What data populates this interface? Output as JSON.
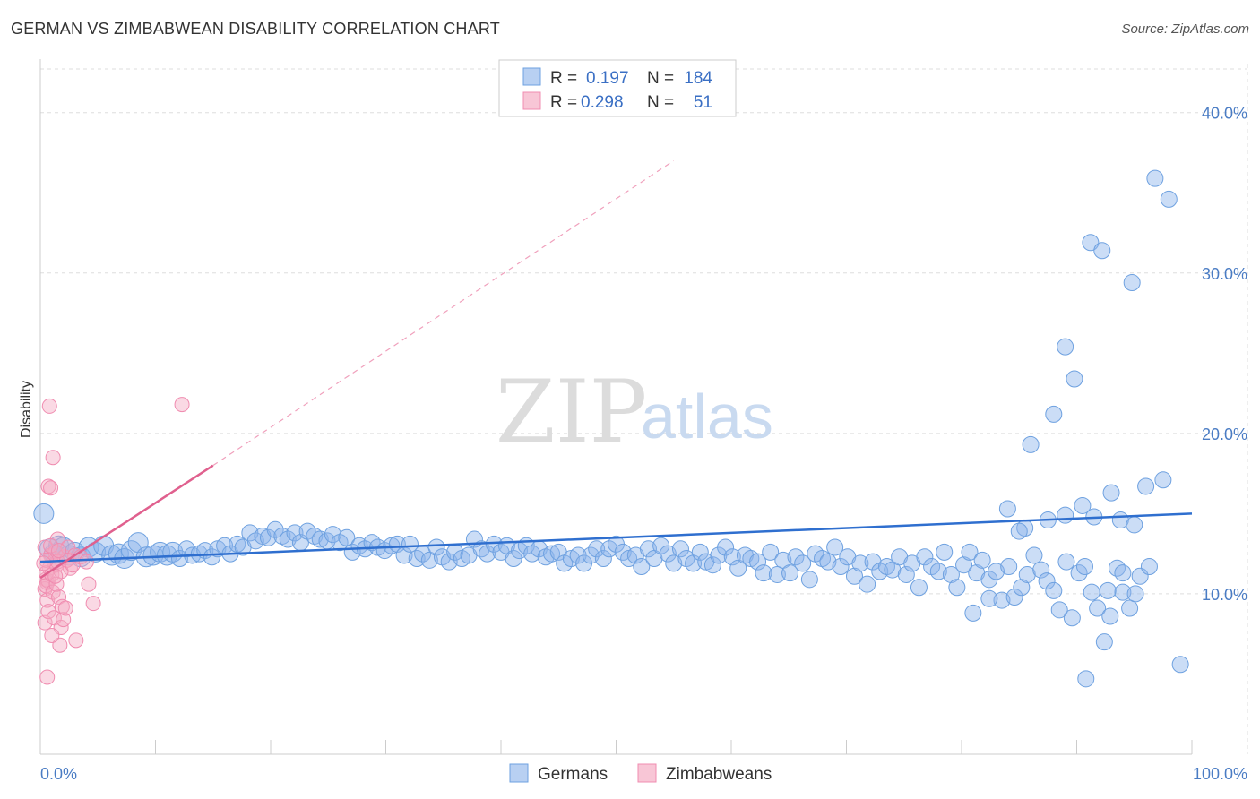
{
  "title": "GERMAN VS ZIMBABWEAN DISABILITY CORRELATION CHART",
  "source": "Source: ZipAtlas.com",
  "watermark": {
    "zip": "ZIP",
    "atlas": "atlas"
  },
  "colors": {
    "german": "#6ea1e0",
    "german_line": "#2f6fcf",
    "zimbabwean": "#f08cb0",
    "zimbabwean_line": "#e0608e",
    "tick": "#4a7cc4",
    "grid": "#dddddd"
  },
  "legend": {
    "rows": [
      {
        "r_label": "R =",
        "r_value": "0.197",
        "n_label": "N =",
        "n_value": "184"
      },
      {
        "r_label": "R =",
        "r_value": "0.298",
        "n_label": "N =",
        "n_value": "51"
      }
    ]
  },
  "bottom_legend": [
    "Germans",
    "Zimbabweans"
  ],
  "chart_data": {
    "type": "scatter",
    "xlabel": "",
    "ylabel": "Disability",
    "xlim": [
      0,
      100
    ],
    "ylim": [
      0,
      43
    ],
    "x_tick_labels": [
      "0.0%",
      "100.0%"
    ],
    "y_ticks": [
      10,
      20,
      30,
      40
    ],
    "y_tick_labels": [
      "10.0%",
      "20.0%",
      "30.0%",
      "40.0%"
    ],
    "grid": true,
    "legend_position": "top-center",
    "series": [
      {
        "name": "Germans",
        "trend": {
          "x": [
            0,
            100
          ],
          "y": [
            12.0,
            15.0
          ]
        },
        "points": [
          [
            0.3,
            15.0
          ],
          [
            0.8,
            12.8
          ],
          [
            1.2,
            12.5
          ],
          [
            1.6,
            13.0
          ],
          [
            2.0,
            12.9
          ],
          [
            2.5,
            12.4
          ],
          [
            3.0,
            12.6
          ],
          [
            3.5,
            12.3
          ],
          [
            4.2,
            12.9
          ],
          [
            4.8,
            12.6
          ],
          [
            5.5,
            13.0
          ],
          [
            6.2,
            12.4
          ],
          [
            6.8,
            12.5
          ],
          [
            7.3,
            12.2
          ],
          [
            7.9,
            12.7
          ],
          [
            8.5,
            13.2
          ],
          [
            9.2,
            12.3
          ],
          [
            9.8,
            12.4
          ],
          [
            10.4,
            12.6
          ],
          [
            11.0,
            12.4
          ],
          [
            11.5,
            12.6
          ],
          [
            12.1,
            12.2
          ],
          [
            12.7,
            12.8
          ],
          [
            13.2,
            12.4
          ],
          [
            13.8,
            12.5
          ],
          [
            14.3,
            12.7
          ],
          [
            14.9,
            12.3
          ],
          [
            15.4,
            12.8
          ],
          [
            16.0,
            13.0
          ],
          [
            16.5,
            12.5
          ],
          [
            17.1,
            13.1
          ],
          [
            17.6,
            12.9
          ],
          [
            18.2,
            13.8
          ],
          [
            18.7,
            13.3
          ],
          [
            19.3,
            13.6
          ],
          [
            19.8,
            13.5
          ],
          [
            20.4,
            14.0
          ],
          [
            21.0,
            13.6
          ],
          [
            21.5,
            13.4
          ],
          [
            22.1,
            13.8
          ],
          [
            22.6,
            13.2
          ],
          [
            23.2,
            13.9
          ],
          [
            23.8,
            13.6
          ],
          [
            24.3,
            13.4
          ],
          [
            24.9,
            13.3
          ],
          [
            25.4,
            13.7
          ],
          [
            26.0,
            13.2
          ],
          [
            26.6,
            13.5
          ],
          [
            27.1,
            12.6
          ],
          [
            27.7,
            13.0
          ],
          [
            28.2,
            12.8
          ],
          [
            28.8,
            13.2
          ],
          [
            29.3,
            12.9
          ],
          [
            29.9,
            12.7
          ],
          [
            30.5,
            13.0
          ],
          [
            31.0,
            13.1
          ],
          [
            31.6,
            12.4
          ],
          [
            32.1,
            13.1
          ],
          [
            32.7,
            12.2
          ],
          [
            33.2,
            12.5
          ],
          [
            33.8,
            12.1
          ],
          [
            34.4,
            12.9
          ],
          [
            34.9,
            12.3
          ],
          [
            35.5,
            12.0
          ],
          [
            36.0,
            12.6
          ],
          [
            36.6,
            12.2
          ],
          [
            37.2,
            12.4
          ],
          [
            37.7,
            13.4
          ],
          [
            38.3,
            12.8
          ],
          [
            38.8,
            12.5
          ],
          [
            39.4,
            13.1
          ],
          [
            40.0,
            12.6
          ],
          [
            40.5,
            13.0
          ],
          [
            41.1,
            12.2
          ],
          [
            41.6,
            12.7
          ],
          [
            42.2,
            13.0
          ],
          [
            42.7,
            12.5
          ],
          [
            43.3,
            12.8
          ],
          [
            43.9,
            12.3
          ],
          [
            44.4,
            12.5
          ],
          [
            45.0,
            12.6
          ],
          [
            45.5,
            11.9
          ],
          [
            46.1,
            12.2
          ],
          [
            46.7,
            12.4
          ],
          [
            47.2,
            11.9
          ],
          [
            47.8,
            12.4
          ],
          [
            48.3,
            12.8
          ],
          [
            48.9,
            12.2
          ],
          [
            49.4,
            12.8
          ],
          [
            50.0,
            13.1
          ],
          [
            50.6,
            12.6
          ],
          [
            51.1,
            12.2
          ],
          [
            51.7,
            12.4
          ],
          [
            52.2,
            11.7
          ],
          [
            52.8,
            12.8
          ],
          [
            53.3,
            12.2
          ],
          [
            53.9,
            13.0
          ],
          [
            54.5,
            12.5
          ],
          [
            55.0,
            11.9
          ],
          [
            55.6,
            12.8
          ],
          [
            56.1,
            12.2
          ],
          [
            56.7,
            11.9
          ],
          [
            57.3,
            12.6
          ],
          [
            57.8,
            12.0
          ],
          [
            58.4,
            11.8
          ],
          [
            58.9,
            12.4
          ],
          [
            59.5,
            12.9
          ],
          [
            60.1,
            12.3
          ],
          [
            60.6,
            11.6
          ],
          [
            61.2,
            12.4
          ],
          [
            61.7,
            12.2
          ],
          [
            62.3,
            12.0
          ],
          [
            62.8,
            11.3
          ],
          [
            63.4,
            12.6
          ],
          [
            64.0,
            11.2
          ],
          [
            64.5,
            12.1
          ],
          [
            65.1,
            11.3
          ],
          [
            65.6,
            12.3
          ],
          [
            66.2,
            11.9
          ],
          [
            66.8,
            10.9
          ],
          [
            67.3,
            12.5
          ],
          [
            67.9,
            12.2
          ],
          [
            68.4,
            12.0
          ],
          [
            69.0,
            12.9
          ],
          [
            69.5,
            11.7
          ],
          [
            70.1,
            12.3
          ],
          [
            70.7,
            11.1
          ],
          [
            71.2,
            11.9
          ],
          [
            71.8,
            10.6
          ],
          [
            72.3,
            12.0
          ],
          [
            72.9,
            11.4
          ],
          [
            73.5,
            11.7
          ],
          [
            74.0,
            11.5
          ],
          [
            74.6,
            12.3
          ],
          [
            75.2,
            11.2
          ],
          [
            75.7,
            11.9
          ],
          [
            76.3,
            10.4
          ],
          [
            76.8,
            12.3
          ],
          [
            77.4,
            11.7
          ],
          [
            78.0,
            11.4
          ],
          [
            78.5,
            12.6
          ],
          [
            79.1,
            11.2
          ],
          [
            79.6,
            10.4
          ],
          [
            80.2,
            11.8
          ],
          [
            80.7,
            12.6
          ],
          [
            81.3,
            11.3
          ],
          [
            81.8,
            12.1
          ],
          [
            82.4,
            10.9
          ],
          [
            83.0,
            11.4
          ],
          [
            83.5,
            9.6
          ],
          [
            84.1,
            11.7
          ],
          [
            84.6,
            9.8
          ],
          [
            85.2,
            10.4
          ],
          [
            85.7,
            11.2
          ],
          [
            86.3,
            12.4
          ],
          [
            86.9,
            11.5
          ],
          [
            87.4,
            10.8
          ],
          [
            88.0,
            10.2
          ],
          [
            88.5,
            9.0
          ],
          [
            89.1,
            12.0
          ],
          [
            89.6,
            8.5
          ],
          [
            90.2,
            11.3
          ],
          [
            90.7,
            11.7
          ],
          [
            91.3,
            10.1
          ],
          [
            91.8,
            9.1
          ],
          [
            92.4,
            7.0
          ],
          [
            92.9,
            8.6
          ],
          [
            93.5,
            11.6
          ],
          [
            94.0,
            10.1
          ],
          [
            94.6,
            9.1
          ],
          [
            95.1,
            10.0
          ],
          [
            84.0,
            15.3
          ],
          [
            85.5,
            14.1
          ],
          [
            87.5,
            14.6
          ],
          [
            89.0,
            14.9
          ],
          [
            90.5,
            15.5
          ],
          [
            91.5,
            14.8
          ],
          [
            93.0,
            16.3
          ],
          [
            93.8,
            14.6
          ],
          [
            95.0,
            14.3
          ],
          [
            96.0,
            16.7
          ],
          [
            97.5,
            17.1
          ],
          [
            81.0,
            8.8
          ],
          [
            82.4,
            9.7
          ],
          [
            85.0,
            13.9
          ],
          [
            86.0,
            19.3
          ],
          [
            88.0,
            21.2
          ],
          [
            89.8,
            23.4
          ],
          [
            89.0,
            25.4
          ],
          [
            91.2,
            31.9
          ],
          [
            92.2,
            31.4
          ],
          [
            94.8,
            29.4
          ],
          [
            96.8,
            35.9
          ],
          [
            98.0,
            34.6
          ],
          [
            99.0,
            5.6
          ],
          [
            90.8,
            4.7
          ],
          [
            95.5,
            11.1
          ],
          [
            94.0,
            11.3
          ],
          [
            92.7,
            10.2
          ],
          [
            96.3,
            11.7
          ]
        ]
      },
      {
        "name": "Zimbabweans",
        "trend": {
          "x": [
            0,
            15
          ],
          "y": [
            11.0,
            18.0
          ]
        },
        "trend_extension": {
          "x": [
            15,
            55
          ],
          "y": [
            18.0,
            37.0
          ]
        },
        "points": [
          [
            0.4,
            12.9
          ],
          [
            0.6,
            10.7
          ],
          [
            0.5,
            10.9
          ],
          [
            0.8,
            11.6
          ],
          [
            0.4,
            10.3
          ],
          [
            0.7,
            10.8
          ],
          [
            0.5,
            11.3
          ],
          [
            0.9,
            12.4
          ],
          [
            0.6,
            9.6
          ],
          [
            0.4,
            8.2
          ],
          [
            0.7,
            8.9
          ],
          [
            0.5,
            10.5
          ],
          [
            1.0,
            11.2
          ],
          [
            1.2,
            12.0
          ],
          [
            1.3,
            12.6
          ],
          [
            1.5,
            13.4
          ],
          [
            1.4,
            11.8
          ],
          [
            1.1,
            10.1
          ],
          [
            1.6,
            9.8
          ],
          [
            1.2,
            8.5
          ],
          [
            1.8,
            7.9
          ],
          [
            2.0,
            8.4
          ],
          [
            1.9,
            9.2
          ],
          [
            1.7,
            6.8
          ],
          [
            1.0,
            7.4
          ],
          [
            0.6,
            4.8
          ],
          [
            2.1,
            12.3
          ],
          [
            2.4,
            12.9
          ],
          [
            2.6,
            11.6
          ],
          [
            3.0,
            12.4
          ],
          [
            0.7,
            16.7
          ],
          [
            0.8,
            21.7
          ],
          [
            1.1,
            18.5
          ],
          [
            0.9,
            16.6
          ],
          [
            1.5,
            12.0
          ],
          [
            1.8,
            11.4
          ],
          [
            2.3,
            12.1
          ],
          [
            4.2,
            10.6
          ],
          [
            4.6,
            9.4
          ],
          [
            3.1,
            7.1
          ],
          [
            1.4,
            10.6
          ],
          [
            0.9,
            13.0
          ],
          [
            1.3,
            11.1
          ],
          [
            2.8,
            11.8
          ],
          [
            1.6,
            12.7
          ],
          [
            0.5,
            12.1
          ],
          [
            2.2,
            9.1
          ],
          [
            3.5,
            12.3
          ],
          [
            4.0,
            12.0
          ],
          [
            12.3,
            21.8
          ],
          [
            0.3,
            11.9
          ]
        ]
      }
    ]
  }
}
